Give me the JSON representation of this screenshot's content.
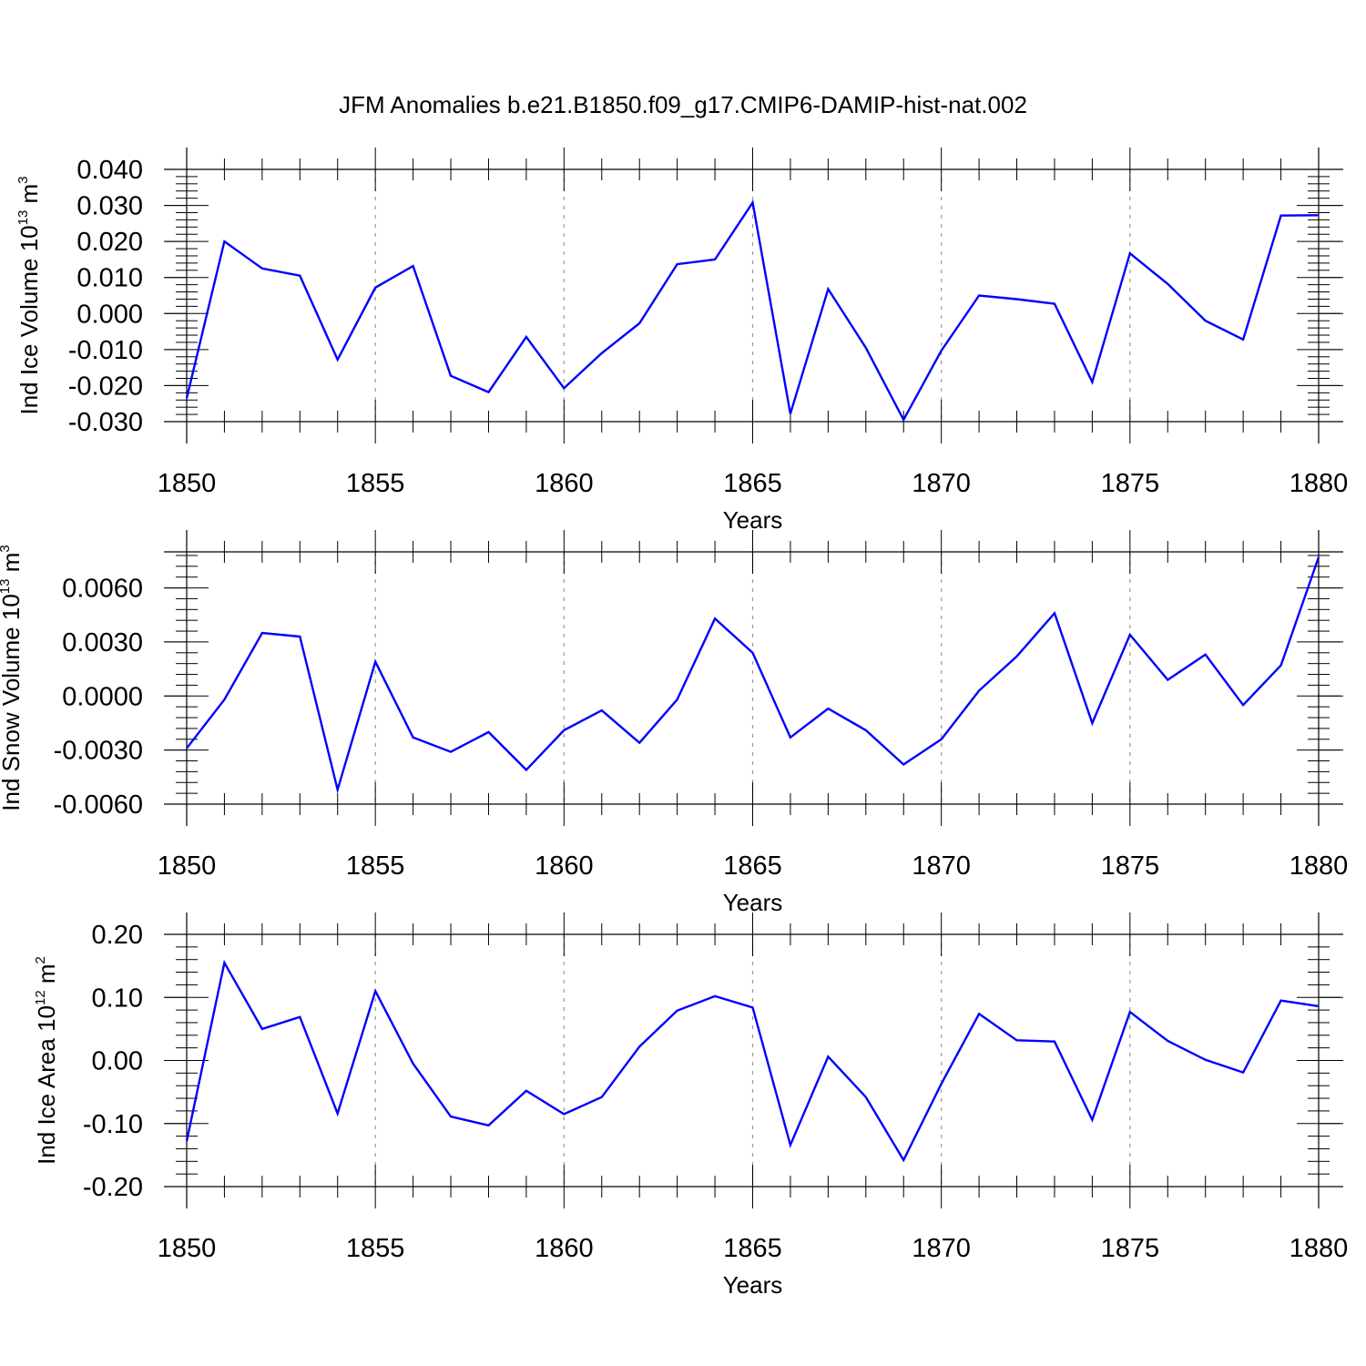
{
  "title": "JFM Anomalies b.e21.B1850.f09_g17.CMIP6-DAMIP-hist-nat.002",
  "colors": {
    "series": "#0000ff",
    "axis": "#000000",
    "grid": "#999999"
  },
  "chart_data": [
    {
      "type": "line",
      "name": "ice-volume",
      "ylabel": "Ind Ice Volume 10",
      "ylabel_exp": "13",
      "ylabel_unit": "m",
      "ylabel_unit_exp": "3",
      "xlabel": "Years",
      "xlim": [
        1850,
        1880
      ],
      "ylim": [
        -0.03,
        0.04
      ],
      "xticks": [
        1850,
        1855,
        1860,
        1865,
        1870,
        1875,
        1880
      ],
      "xtick_labels": [
        "1850",
        "1855",
        "1860",
        "1865",
        "1870",
        "1875",
        "1880"
      ],
      "yticks": [
        -0.03,
        -0.02,
        -0.01,
        0.0,
        0.01,
        0.02,
        0.03,
        0.04
      ],
      "ytick_labels": [
        "-0.030",
        "-0.020",
        "-0.010",
        "0.000",
        "0.010",
        "0.020",
        "0.030",
        "0.040"
      ],
      "x": [
        1850,
        1851,
        1852,
        1853,
        1854,
        1855,
        1856,
        1857,
        1858,
        1859,
        1860,
        1861,
        1862,
        1863,
        1864,
        1865,
        1866,
        1867,
        1868,
        1869,
        1870,
        1871,
        1872,
        1873,
        1874,
        1875,
        1876,
        1877,
        1878,
        1879,
        1880
      ],
      "values": [
        -0.0235,
        0.02,
        0.0125,
        0.0105,
        -0.0128,
        0.0072,
        0.0132,
        -0.0173,
        -0.0218,
        -0.0065,
        -0.0207,
        -0.011,
        -0.0027,
        0.0137,
        0.015,
        0.0308,
        -0.0278,
        0.0068,
        -0.0095,
        -0.0295,
        -0.0103,
        0.005,
        0.004,
        0.0027,
        -0.019,
        0.0167,
        0.0082,
        -0.002,
        -0.0072,
        0.0272,
        0.0273
      ],
      "grid_x": true
    },
    {
      "type": "line",
      "name": "snow-volume",
      "ylabel": "Ind Snow Volume 10",
      "ylabel_exp": "13",
      "ylabel_unit": "m",
      "ylabel_unit_exp": "3",
      "xlabel": "Years",
      "xlim": [
        1850,
        1880
      ],
      "ylim": [
        -0.006,
        0.008
      ],
      "xticks": [
        1850,
        1855,
        1860,
        1865,
        1870,
        1875,
        1880
      ],
      "xtick_labels": [
        "1850",
        "1855",
        "1860",
        "1865",
        "1870",
        "1875",
        "1880"
      ],
      "yticks": [
        -0.006,
        -0.003,
        0.0,
        0.003,
        0.006
      ],
      "ytick_labels": [
        "-0.0060",
        "-0.0030",
        "0.0000",
        "0.0030",
        "0.0060"
      ],
      "x": [
        1850,
        1851,
        1852,
        1853,
        1854,
        1855,
        1856,
        1857,
        1858,
        1859,
        1860,
        1861,
        1862,
        1863,
        1864,
        1865,
        1866,
        1867,
        1868,
        1869,
        1870,
        1871,
        1872,
        1873,
        1874,
        1875,
        1876,
        1877,
        1878,
        1879,
        1880
      ],
      "values": [
        -0.0029,
        -0.0002,
        0.0035,
        0.0033,
        -0.0052,
        0.0019,
        -0.0023,
        -0.0031,
        -0.002,
        -0.0041,
        -0.0019,
        -0.0008,
        -0.0026,
        -0.0002,
        0.0043,
        0.0024,
        -0.0023,
        -0.0007,
        -0.0019,
        -0.0038,
        -0.0024,
        0.0003,
        0.0022,
        0.0046,
        -0.0015,
        0.0034,
        0.0009,
        0.0023,
        -0.0005,
        0.0017,
        0.0077
      ],
      "grid_x": true
    },
    {
      "type": "line",
      "name": "ice-area",
      "ylabel": "Ind Ice Area 10",
      "ylabel_exp": "12",
      "ylabel_unit": "m",
      "ylabel_unit_exp": "2",
      "xlabel": "Years",
      "xlim": [
        1850,
        1880
      ],
      "ylim": [
        -0.2,
        0.2
      ],
      "xticks": [
        1850,
        1855,
        1860,
        1865,
        1870,
        1875,
        1880
      ],
      "xtick_labels": [
        "1850",
        "1855",
        "1860",
        "1865",
        "1870",
        "1875",
        "1880"
      ],
      "yticks": [
        -0.2,
        -0.1,
        0.0,
        0.1,
        0.2
      ],
      "ytick_labels": [
        "-0.20",
        "-0.10",
        "0.00",
        "0.10",
        "0.20"
      ],
      "x": [
        1850,
        1851,
        1852,
        1853,
        1854,
        1855,
        1856,
        1857,
        1858,
        1859,
        1860,
        1861,
        1862,
        1863,
        1864,
        1865,
        1866,
        1867,
        1868,
        1869,
        1870,
        1871,
        1872,
        1873,
        1874,
        1875,
        1876,
        1877,
        1878,
        1879,
        1880
      ],
      "values": [
        -0.128,
        0.155,
        0.05,
        0.069,
        -0.084,
        0.11,
        -0.005,
        -0.089,
        -0.103,
        -0.048,
        -0.085,
        -0.058,
        0.022,
        0.079,
        0.102,
        0.084,
        -0.134,
        0.006,
        -0.058,
        -0.158,
        -0.037,
        0.074,
        0.032,
        0.03,
        -0.094,
        0.077,
        0.031,
        0.001,
        -0.019,
        0.095,
        0.086
      ],
      "grid_x": true
    }
  ]
}
